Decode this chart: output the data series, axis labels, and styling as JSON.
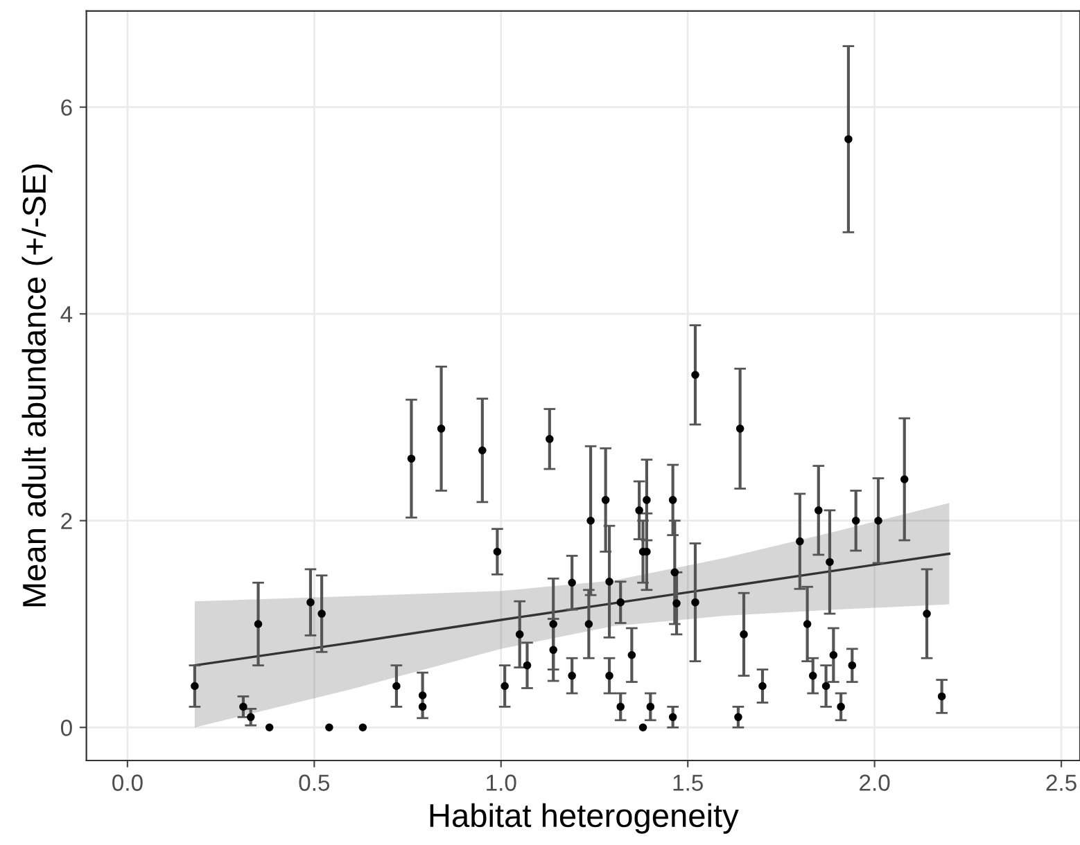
{
  "chart_data": {
    "type": "scatter",
    "xlabel": "Habitat heterogeneity",
    "ylabel": "Mean adult abundance (+/-SE)",
    "xlim": [
      -0.11,
      2.55
    ],
    "ylim": [
      -0.32,
      6.93
    ],
    "xticks": [
      {
        "value": 0,
        "label": "0.0"
      },
      {
        "value": 0.5,
        "label": "0.5"
      },
      {
        "value": 1,
        "label": "1.0"
      },
      {
        "value": 1.5,
        "label": "1.5"
      },
      {
        "value": 2,
        "label": "2.0"
      },
      {
        "value": 2.5,
        "label": "2.5"
      }
    ],
    "yticks": [
      0,
      2,
      4,
      6
    ],
    "grid": true,
    "series": [
      {
        "type": "line",
        "color": "#333333",
        "x": [
          0.18,
          0.6,
          1.0,
          1.3,
          1.6,
          1.9,
          2.2
        ],
        "values": [
          0.6,
          0.82,
          1.04,
          1.2,
          1.36,
          1.52,
          1.68
        ],
        "lower": [
          0.0,
          0.37,
          0.76,
          0.98,
          1.08,
          1.14,
          1.19
        ],
        "upper": [
          1.22,
          1.27,
          1.32,
          1.42,
          1.64,
          1.9,
          2.17
        ]
      },
      {
        "color": "#000000",
        "marker": "circle",
        "x": [
          0.18,
          0.31,
          0.33,
          0.35,
          0.38,
          0.49,
          0.52,
          0.54,
          0.63,
          0.72,
          0.76,
          0.79,
          0.79,
          0.84,
          0.95,
          0.99,
          1.01,
          1.05,
          1.07,
          1.13,
          1.14,
          1.14,
          1.19,
          1.19,
          1.235,
          1.24,
          1.28,
          1.29,
          1.29,
          1.32,
          1.32,
          1.35,
          1.37,
          1.38,
          1.38,
          1.39,
          1.39,
          1.4,
          1.46,
          1.46,
          1.465,
          1.47,
          1.52,
          1.52,
          1.635,
          1.64,
          1.65,
          1.7,
          1.8,
          1.82,
          1.835,
          1.85,
          1.87,
          1.88,
          1.89,
          1.91,
          1.93,
          1.94,
          1.95,
          2.01,
          2.08,
          2.14,
          2.18
        ],
        "values": [
          0.4,
          0.2,
          0.1,
          1.0,
          0.0,
          1.21,
          1.1,
          0.0,
          0.0,
          0.4,
          2.6,
          0.31,
          0.2,
          2.89,
          2.68,
          1.7,
          0.4,
          0.9,
          0.6,
          2.79,
          1.0,
          0.75,
          0.5,
          1.4,
          1.0,
          2.0,
          2.2,
          1.41,
          0.5,
          1.21,
          0.2,
          0.7,
          2.1,
          1.7,
          0.0,
          2.2,
          1.7,
          0.2,
          0.1,
          2.2,
          1.5,
          1.2,
          1.21,
          3.41,
          0.1,
          2.89,
          0.9,
          0.4,
          1.8,
          1.0,
          0.5,
          2.1,
          0.4,
          1.6,
          0.7,
          0.2,
          5.69,
          0.6,
          2.0,
          2.0,
          2.4,
          1.1,
          0.3
        ],
        "errors": [
          0.2,
          0.1,
          0.08,
          0.4,
          null,
          0.32,
          0.37,
          null,
          null,
          0.2,
          0.57,
          0.22,
          null,
          0.6,
          0.5,
          0.22,
          0.2,
          0.32,
          0.22,
          0.29,
          0.44,
          0.3,
          0.17,
          0.26,
          0.33,
          0.72,
          0.5,
          0.54,
          0.17,
          0.2,
          0.13,
          0.26,
          0.28,
          0.3,
          null,
          0.39,
          0.37,
          0.13,
          0.1,
          0.34,
          0.5,
          0.3,
          0.57,
          0.48,
          0.1,
          0.58,
          0.4,
          0.16,
          0.46,
          0.36,
          0.17,
          0.43,
          0.2,
          0.5,
          0.26,
          0.13,
          0.9,
          0.16,
          0.29,
          0.41,
          0.59,
          0.43,
          0.16
        ]
      }
    ]
  }
}
